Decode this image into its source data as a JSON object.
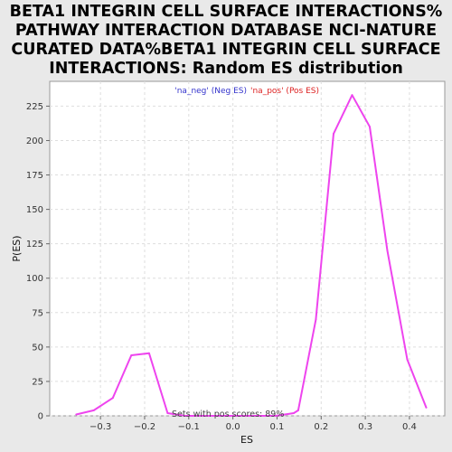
{
  "chart_data": {
    "type": "line",
    "title_lines": [
      "BETA1 INTEGRIN CELL SURFACE INTERACTIONS%",
      "PATHWAY INTERACTION DATABASE NCI-NATURE",
      "CURATED DATA%BETA1 INTEGRIN CELL SURFACE",
      "INTERACTIONS: Random ES distribution"
    ],
    "xlabel": "ES",
    "ylabel": "P(ES)",
    "xlim": [
      -0.415,
      0.48
    ],
    "ylim": [
      0,
      243
    ],
    "xticks": [
      -0.3,
      -0.2,
      -0.1,
      0.0,
      0.1,
      0.2,
      0.3,
      0.4
    ],
    "xtick_labels": [
      "−0.3",
      "−0.2",
      "−0.1",
      "0.0",
      "0.1",
      "0.2",
      "0.3",
      "0.4"
    ],
    "yticks": [
      0,
      25,
      50,
      75,
      100,
      125,
      150,
      175,
      200,
      225
    ],
    "ytick_labels": [
      "0",
      "25",
      "50",
      "75",
      "100",
      "125",
      "150",
      "175",
      "200",
      "225"
    ],
    "grid": true,
    "legend": {
      "placement": "top-center",
      "entries": [
        {
          "label": "'na_neg' (Neg ES)",
          "color": "#3333cc"
        },
        {
          "label": "'na_pos' (Pos ES)",
          "color": "#dd2222"
        }
      ]
    },
    "annotation": "Sets with pos scores: 89%",
    "series": [
      {
        "color": "#ee44ee",
        "x": [
          -0.355,
          -0.315,
          -0.272,
          -0.23,
          -0.19,
          -0.148,
          -0.108,
          -0.065,
          -0.025,
          0.016,
          0.057,
          0.097,
          0.138,
          0.148,
          0.188,
          0.228,
          0.27,
          0.31,
          0.35,
          0.395,
          0.438
        ],
        "y": [
          1,
          4,
          13,
          44,
          45.5,
          2,
          0,
          0,
          0,
          0,
          0,
          0,
          2,
          4,
          70,
          205,
          233,
          210,
          120,
          41,
          6
        ]
      }
    ]
  }
}
